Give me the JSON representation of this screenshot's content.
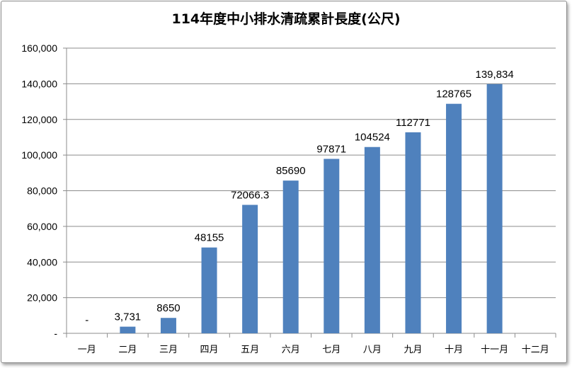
{
  "chart_data": {
    "type": "bar",
    "title": "114年度中小排水清疏累計長度(公尺)",
    "xlabel": "",
    "ylabel": "",
    "ylim": [
      0,
      160000
    ],
    "y_ticks": [
      {
        "value": 0,
        "label": "-"
      },
      {
        "value": 20000,
        "label": "20,000"
      },
      {
        "value": 40000,
        "label": "40,000"
      },
      {
        "value": 60000,
        "label": "60,000"
      },
      {
        "value": 80000,
        "label": "80,000"
      },
      {
        "value": 100000,
        "label": "100,000"
      },
      {
        "value": 120000,
        "label": "120,000"
      },
      {
        "value": 140000,
        "label": "140,000"
      },
      {
        "value": 160000,
        "label": "160,000"
      }
    ],
    "grid": true,
    "legend": "none",
    "bar_color": "#4f81bd",
    "categories": [
      "一月",
      "二月",
      "三月",
      "四月",
      "五月",
      "六月",
      "七月",
      "八月",
      "九月",
      "十月",
      "十一月",
      "十二月"
    ],
    "values": [
      0,
      3731,
      8650,
      48155,
      72066.3,
      85690,
      97871,
      104524,
      112771,
      128765,
      139834,
      null
    ],
    "data_labels": [
      "-",
      "3,731",
      "8650",
      "48155",
      "72066.3",
      "85690",
      "97871",
      "104524",
      "112771",
      "128765",
      "139,834",
      ""
    ]
  }
}
